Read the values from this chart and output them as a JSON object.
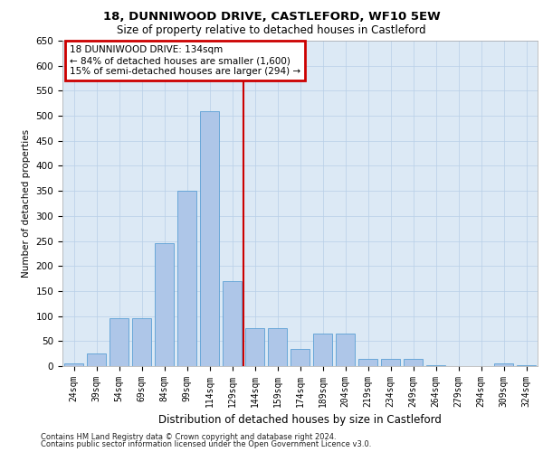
{
  "title1": "18, DUNNIWOOD DRIVE, CASTLEFORD, WF10 5EW",
  "title2": "Size of property relative to detached houses in Castleford",
  "xlabel": "Distribution of detached houses by size in Castleford",
  "ylabel": "Number of detached properties",
  "categories": [
    "24sqm",
    "39sqm",
    "54sqm",
    "69sqm",
    "84sqm",
    "99sqm",
    "114sqm",
    "129sqm",
    "144sqm",
    "159sqm",
    "174sqm",
    "189sqm",
    "204sqm",
    "219sqm",
    "234sqm",
    "249sqm",
    "264sqm",
    "279sqm",
    "294sqm",
    "309sqm",
    "324sqm"
  ],
  "values": [
    5,
    25,
    95,
    95,
    245,
    350,
    510,
    170,
    75,
    75,
    35,
    65,
    65,
    15,
    15,
    15,
    2,
    0,
    0,
    5,
    2
  ],
  "bar_color": "#aec6e8",
  "bar_edge_color": "#5a9fd4",
  "vline_color": "#cc0000",
  "annotation_line1": "18 DUNNIWOOD DRIVE: 134sqm",
  "annotation_line2": "← 84% of detached houses are smaller (1,600)",
  "annotation_line3": "15% of semi-detached houses are larger (294) →",
  "background_color": "#dce9f5",
  "ylim": [
    0,
    650
  ],
  "yticks": [
    0,
    50,
    100,
    150,
    200,
    250,
    300,
    350,
    400,
    450,
    500,
    550,
    600,
    650
  ],
  "footer1": "Contains HM Land Registry data © Crown copyright and database right 2024.",
  "footer2": "Contains public sector information licensed under the Open Government Licence v3.0."
}
